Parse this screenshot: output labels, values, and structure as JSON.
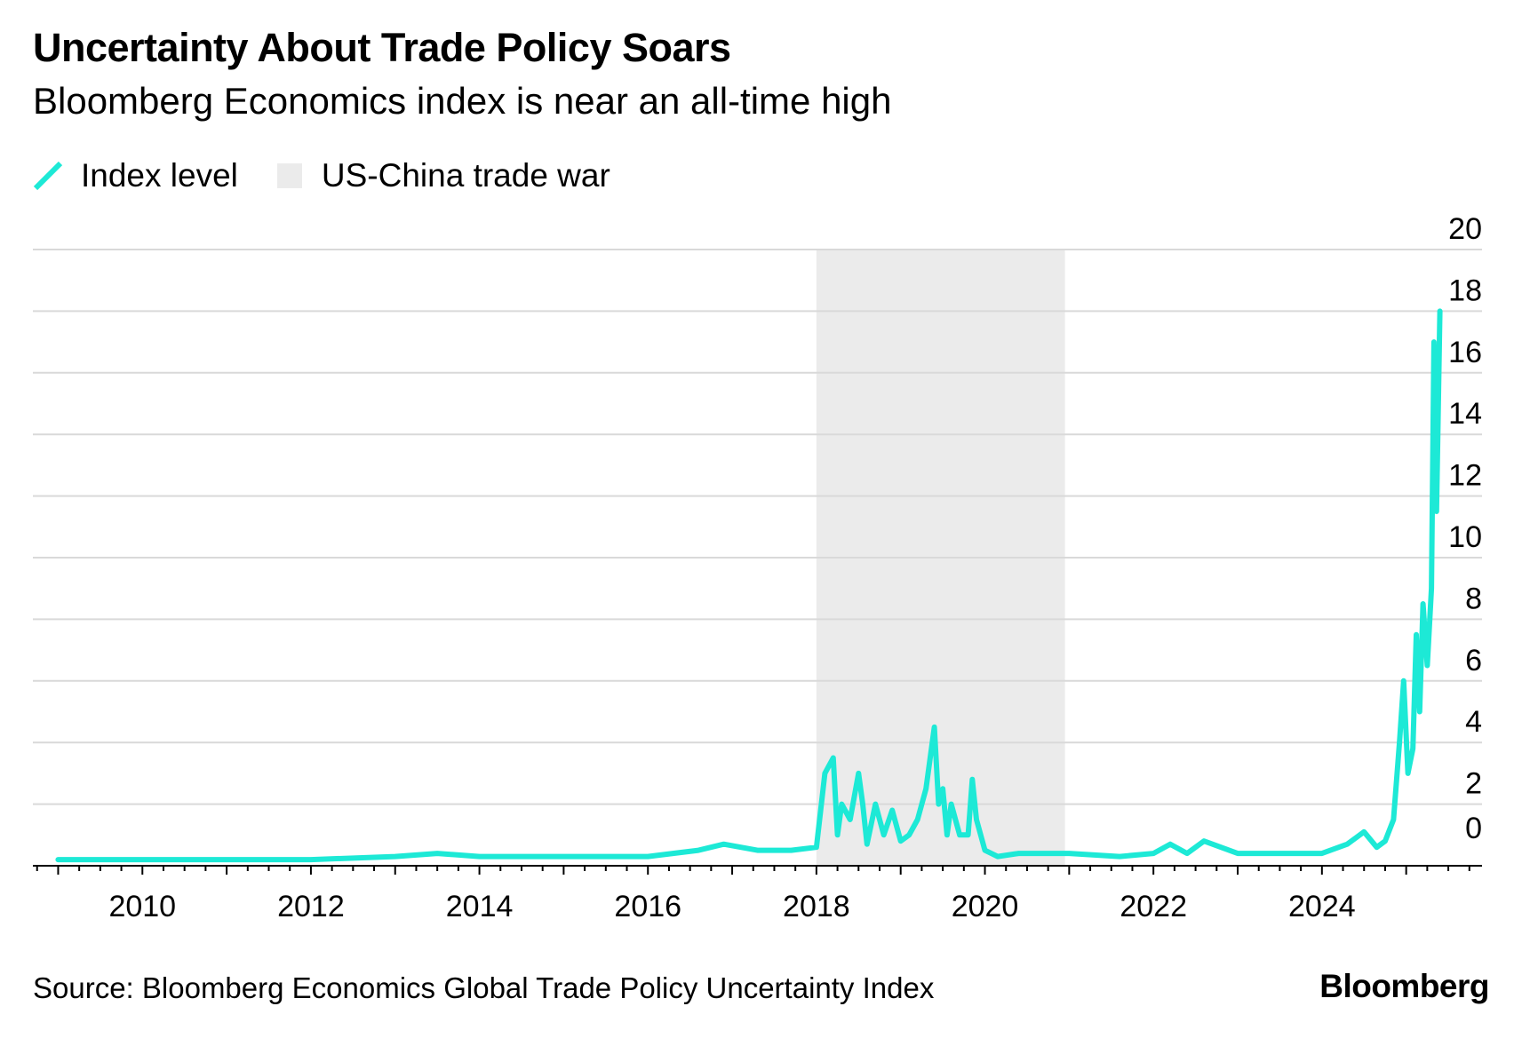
{
  "chart_data": {
    "type": "line",
    "title": "Uncertainty About Trade Policy Soars",
    "subtitle": "Bloomberg Economics index is near an all-time high",
    "xlabel": "",
    "ylabel": "",
    "ylim": [
      0,
      20
    ],
    "xlim": [
      2008.7,
      2025.9
    ],
    "x_ticks": [
      "2010",
      "2012",
      "2014",
      "2016",
      "2018",
      "2020",
      "2022",
      "2024"
    ],
    "y_ticks": [
      "0",
      "2",
      "4",
      "6",
      "8",
      "10",
      "12",
      "14",
      "16",
      "18",
      "20"
    ],
    "grid": true,
    "legend_position": "top-left",
    "series": [
      {
        "name": "Index level",
        "color": "#1de9d6",
        "x": [
          2009.0,
          2010.0,
          2011.0,
          2012.0,
          2013.0,
          2013.5,
          2014.0,
          2015.0,
          2016.0,
          2016.6,
          2016.9,
          2017.3,
          2017.7,
          2018.0,
          2018.1,
          2018.2,
          2018.25,
          2018.3,
          2018.4,
          2018.5,
          2018.55,
          2018.6,
          2018.7,
          2018.8,
          2018.9,
          2019.0,
          2019.1,
          2019.2,
          2019.3,
          2019.4,
          2019.45,
          2019.5,
          2019.55,
          2019.6,
          2019.7,
          2019.8,
          2019.85,
          2019.9,
          2020.0,
          2020.15,
          2020.4,
          2021.0,
          2021.6,
          2022.0,
          2022.2,
          2022.4,
          2022.6,
          2023.0,
          2023.5,
          2024.0,
          2024.3,
          2024.5,
          2024.65,
          2024.75,
          2024.85,
          2024.92,
          2024.97,
          2025.02,
          2025.08,
          2025.12,
          2025.16,
          2025.2,
          2025.25,
          2025.3,
          2025.33,
          2025.36,
          2025.4
        ],
        "y": [
          0.2,
          0.2,
          0.2,
          0.2,
          0.3,
          0.4,
          0.3,
          0.3,
          0.3,
          0.5,
          0.7,
          0.5,
          0.5,
          0.6,
          3.0,
          3.5,
          1.0,
          2.0,
          1.5,
          3.0,
          2.0,
          0.7,
          2.0,
          1.0,
          1.8,
          0.8,
          1.0,
          1.5,
          2.5,
          4.5,
          2.0,
          2.5,
          1.0,
          2.0,
          1.0,
          1.0,
          2.8,
          1.5,
          0.5,
          0.3,
          0.4,
          0.4,
          0.3,
          0.4,
          0.7,
          0.4,
          0.8,
          0.4,
          0.4,
          0.4,
          0.7,
          1.1,
          0.6,
          0.8,
          1.5,
          4.0,
          6.0,
          3.0,
          3.8,
          7.5,
          5.0,
          8.5,
          6.5,
          9.0,
          17.0,
          11.5,
          18.0
        ]
      }
    ],
    "shaded_regions": [
      {
        "name": "US-China trade war",
        "start": 2018.0,
        "end": 2020.95,
        "color": "#ebebeb"
      }
    ]
  },
  "legend": {
    "line_label": "Index level",
    "region_label": "US-China trade war"
  },
  "footer": {
    "source": "Source: Bloomberg Economics Global Trade Policy Uncertainty Index",
    "brand": "Bloomberg"
  }
}
